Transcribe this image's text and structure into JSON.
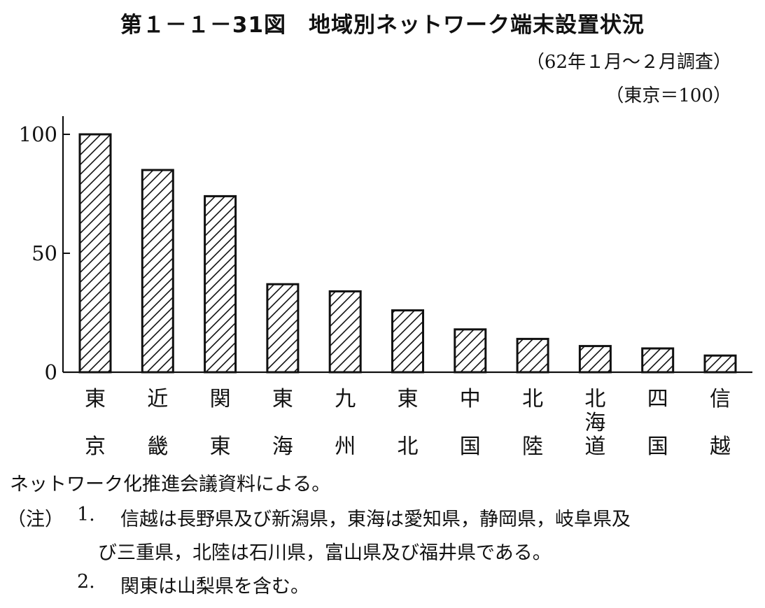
{
  "header": {
    "title": "第１－１－31図　地域別ネットワーク端末設置状況",
    "survey_period": "（62年１月～２月調査）",
    "base_note": "（東京＝100）"
  },
  "chart_data": {
    "type": "bar",
    "categories": [
      [
        "東",
        "京"
      ],
      [
        "近",
        "畿"
      ],
      [
        "関",
        "東"
      ],
      [
        "東",
        "海"
      ],
      [
        "九",
        "州"
      ],
      [
        "東",
        "北"
      ],
      [
        "中",
        "国"
      ],
      [
        "北",
        "陸"
      ],
      [
        "北",
        "海",
        "道"
      ],
      [
        "四",
        "国"
      ],
      [
        "信",
        "越"
      ]
    ],
    "values": [
      100,
      85,
      74,
      37,
      34,
      26,
      18,
      14,
      11,
      10,
      7
    ],
    "yticks": [
      "0",
      "50",
      "100"
    ],
    "ylim": [
      0,
      110
    ],
    "grid": false,
    "fill_pattern": "diagonal-hatch"
  },
  "footer": {
    "source": "ネットワーク化推進会議資料による。",
    "note_label": "（注）",
    "note1_number": "1.",
    "note1_line1": "信越は長野県及び新潟県，東海は愛知県，静岡県，岐阜県及",
    "note1_line2": "び三重県，北陸は石川県，富山県及び福井県である。",
    "note2_number": "2.",
    "note2_text": "関東は山梨県を含む。"
  }
}
